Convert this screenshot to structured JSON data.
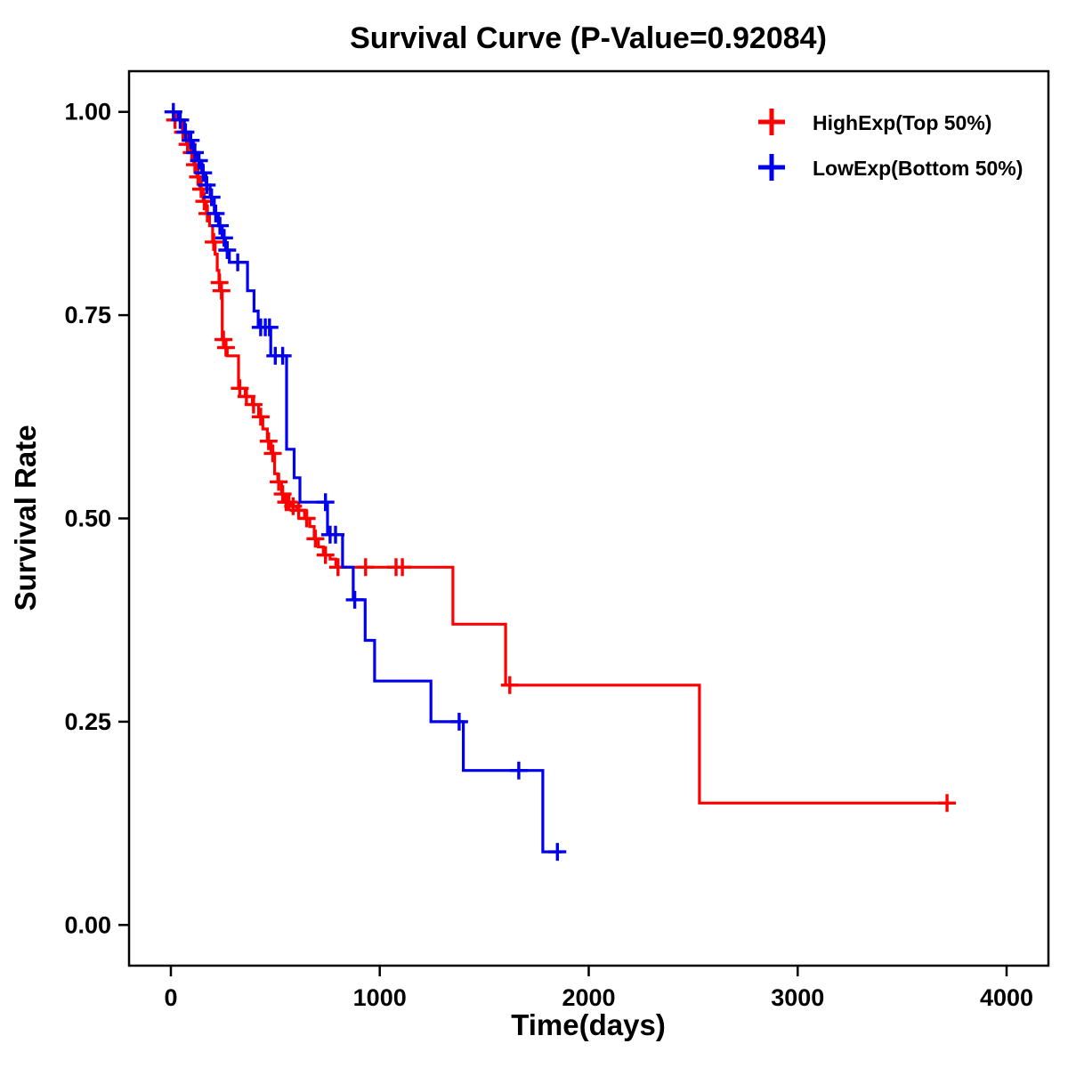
{
  "chart_data": {
    "type": "line",
    "subtype": "kaplan_meier_step_survival",
    "title": "Survival Curve (P-Value=0.92084)",
    "p_value": "0.92084",
    "xlabel": "Time(days)",
    "ylabel": "Survival Rate",
    "xlim": [
      -200,
      4200
    ],
    "ylim": [
      -0.05,
      1.05
    ],
    "xticks": [
      0,
      1000,
      2000,
      3000,
      4000
    ],
    "xtick_labels": [
      "0",
      "1000",
      "2000",
      "3000",
      "4000"
    ],
    "yticks": [
      0,
      0.25,
      0.5,
      0.75,
      1
    ],
    "ytick_labels": [
      "0.00",
      "0.25",
      "0.50",
      "0.75",
      "1.00"
    ],
    "grid": false,
    "legend_position": "top-right",
    "axis_color": "#000000",
    "series": [
      {
        "name": "HighExp(Top 50%)",
        "color": "#FF0000",
        "steps": [
          [
            0,
            1.0
          ],
          [
            35,
            0.99
          ],
          [
            55,
            0.975
          ],
          [
            75,
            0.96
          ],
          [
            95,
            0.95
          ],
          [
            110,
            0.935
          ],
          [
            125,
            0.92
          ],
          [
            140,
            0.905
          ],
          [
            155,
            0.89
          ],
          [
            170,
            0.875
          ],
          [
            185,
            0.86
          ],
          [
            200,
            0.84
          ],
          [
            212,
            0.825
          ],
          [
            222,
            0.805
          ],
          [
            230,
            0.79
          ],
          [
            238,
            0.78
          ],
          [
            246,
            0.72
          ],
          [
            258,
            0.71
          ],
          [
            270,
            0.7
          ],
          [
            324,
            0.66
          ],
          [
            356,
            0.65
          ],
          [
            390,
            0.64
          ],
          [
            420,
            0.625
          ],
          [
            440,
            0.61
          ],
          [
            462,
            0.595
          ],
          [
            480,
            0.58
          ],
          [
            497,
            0.555
          ],
          [
            512,
            0.545
          ],
          [
            530,
            0.53
          ],
          [
            548,
            0.52
          ],
          [
            575,
            0.515
          ],
          [
            602,
            0.51
          ],
          [
            640,
            0.5
          ],
          [
            665,
            0.49
          ],
          [
            686,
            0.475
          ],
          [
            706,
            0.465
          ],
          [
            730,
            0.455
          ],
          [
            762,
            0.45
          ],
          [
            790,
            0.44
          ],
          [
            1350,
            0.37
          ],
          [
            1602,
            0.295
          ],
          [
            2530,
            0.15
          ],
          [
            3720,
            0.15
          ]
        ],
        "censors": [
          [
            20,
            0.99
          ],
          [
            58,
            0.975
          ],
          [
            80,
            0.96
          ],
          [
            100,
            0.95
          ],
          [
            115,
            0.935
          ],
          [
            130,
            0.92
          ],
          [
            145,
            0.905
          ],
          [
            160,
            0.89
          ],
          [
            175,
            0.875
          ],
          [
            205,
            0.84
          ],
          [
            233,
            0.79
          ],
          [
            242,
            0.78
          ],
          [
            252,
            0.72
          ],
          [
            264,
            0.71
          ],
          [
            330,
            0.66
          ],
          [
            362,
            0.65
          ],
          [
            396,
            0.64
          ],
          [
            430,
            0.625
          ],
          [
            468,
            0.595
          ],
          [
            488,
            0.58
          ],
          [
            516,
            0.545
          ],
          [
            535,
            0.53
          ],
          [
            552,
            0.52
          ],
          [
            565,
            0.52
          ],
          [
            585,
            0.515
          ],
          [
            612,
            0.51
          ],
          [
            650,
            0.5
          ],
          [
            692,
            0.475
          ],
          [
            740,
            0.455
          ],
          [
            800,
            0.44
          ],
          [
            932,
            0.44
          ],
          [
            1078,
            0.44
          ],
          [
            1108,
            0.44
          ],
          [
            1622,
            0.295
          ],
          [
            3715,
            0.15
          ]
        ]
      },
      {
        "name": "LowExp(Bottom 50%)",
        "color": "#0000EE",
        "steps": [
          [
            0,
            1.0
          ],
          [
            35,
            0.99
          ],
          [
            65,
            0.975
          ],
          [
            88,
            0.965
          ],
          [
            108,
            0.95
          ],
          [
            128,
            0.94
          ],
          [
            148,
            0.925
          ],
          [
            168,
            0.91
          ],
          [
            188,
            0.895
          ],
          [
            208,
            0.875
          ],
          [
            228,
            0.86
          ],
          [
            246,
            0.845
          ],
          [
            262,
            0.83
          ],
          [
            280,
            0.815
          ],
          [
            367,
            0.78
          ],
          [
            398,
            0.755
          ],
          [
            418,
            0.735
          ],
          [
            478,
            0.7
          ],
          [
            554,
            0.585
          ],
          [
            590,
            0.55
          ],
          [
            618,
            0.52
          ],
          [
            750,
            0.48
          ],
          [
            822,
            0.44
          ],
          [
            873,
            0.4
          ],
          [
            930,
            0.35
          ],
          [
            975,
            0.3
          ],
          [
            1245,
            0.25
          ],
          [
            1400,
            0.19
          ],
          [
            1780,
            0.09
          ],
          [
            1872,
            0.09
          ]
        ],
        "censors": [
          [
            12,
            1.0
          ],
          [
            45,
            0.99
          ],
          [
            70,
            0.975
          ],
          [
            95,
            0.965
          ],
          [
            115,
            0.95
          ],
          [
            135,
            0.94
          ],
          [
            155,
            0.925
          ],
          [
            172,
            0.91
          ],
          [
            195,
            0.895
          ],
          [
            215,
            0.875
          ],
          [
            235,
            0.86
          ],
          [
            255,
            0.845
          ],
          [
            270,
            0.83
          ],
          [
            320,
            0.815
          ],
          [
            430,
            0.735
          ],
          [
            452,
            0.735
          ],
          [
            472,
            0.735
          ],
          [
            500,
            0.7
          ],
          [
            535,
            0.7
          ],
          [
            740,
            0.52
          ],
          [
            762,
            0.48
          ],
          [
            788,
            0.48
          ],
          [
            880,
            0.4
          ],
          [
            1380,
            0.25
          ],
          [
            1665,
            0.19
          ],
          [
            1850,
            0.09
          ]
        ]
      }
    ]
  }
}
